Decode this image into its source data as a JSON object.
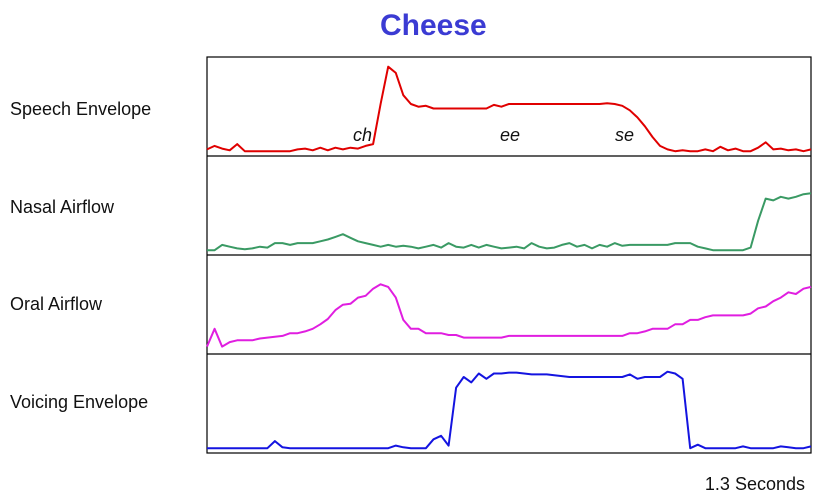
{
  "title": "Cheese",
  "footer": "1.3 Seconds",
  "chart_data": {
    "type": "line",
    "title": "Cheese",
    "xlabel": "1.3 Seconds",
    "ylabel": "",
    "legend": "none",
    "grid": false,
    "series": [
      {
        "name": "Speech Envelope",
        "color": "#e00000",
        "x": [
          0,
          1,
          2,
          3,
          4,
          5,
          6,
          7,
          8,
          9,
          10,
          11,
          12,
          13,
          14,
          15,
          16,
          17,
          18,
          19,
          20,
          21,
          22,
          23,
          24,
          25,
          26,
          27,
          28,
          29,
          30,
          31,
          32,
          33,
          34,
          35,
          36,
          37,
          38,
          39,
          40,
          41,
          42,
          43,
          44,
          45,
          46,
          47,
          48,
          49,
          50,
          51,
          52,
          53,
          54,
          55,
          56,
          57,
          58,
          59,
          60,
          61,
          62,
          63,
          64,
          65,
          66,
          67,
          68,
          69,
          70,
          71,
          72,
          73,
          74,
          75,
          76,
          77,
          78,
          79,
          80
        ],
        "values": [
          0.04,
          0.08,
          0.05,
          0.03,
          0.1,
          0.02,
          0.02,
          0.02,
          0.02,
          0.02,
          0.02,
          0.02,
          0.04,
          0.05,
          0.03,
          0.06,
          0.03,
          0.06,
          0.04,
          0.06,
          0.05,
          0.08,
          0.1,
          0.55,
          0.97,
          0.9,
          0.65,
          0.55,
          0.52,
          0.53,
          0.5,
          0.5,
          0.5,
          0.5,
          0.5,
          0.5,
          0.5,
          0.5,
          0.54,
          0.52,
          0.55,
          0.55,
          0.55,
          0.55,
          0.55,
          0.55,
          0.55,
          0.55,
          0.55,
          0.55,
          0.55,
          0.55,
          0.55,
          0.56,
          0.55,
          0.53,
          0.48,
          0.4,
          0.3,
          0.18,
          0.08,
          0.04,
          0.02,
          0.03,
          0.02,
          0.02,
          0.04,
          0.02,
          0.07,
          0.03,
          0.05,
          0.02,
          0.02,
          0.06,
          0.12,
          0.04,
          0.05,
          0.03,
          0.04,
          0.02,
          0.04
        ],
        "annotations": [
          "ch",
          "ee",
          "se"
        ]
      },
      {
        "name": "Nasal Airflow",
        "color": "#3a9a64",
        "x": [
          0,
          1,
          2,
          3,
          4,
          5,
          6,
          7,
          8,
          9,
          10,
          11,
          12,
          13,
          14,
          15,
          16,
          17,
          18,
          19,
          20,
          21,
          22,
          23,
          24,
          25,
          26,
          27,
          28,
          29,
          30,
          31,
          32,
          33,
          34,
          35,
          36,
          37,
          38,
          39,
          40,
          41,
          42,
          43,
          44,
          45,
          46,
          47,
          48,
          49,
          50,
          51,
          52,
          53,
          54,
          55,
          56,
          57,
          58,
          59,
          60,
          61,
          62,
          63,
          64,
          65,
          66,
          67,
          68,
          69,
          70,
          71,
          72,
          73,
          74,
          75,
          76,
          77,
          78,
          79,
          80
        ],
        "values": [
          0.02,
          0.02,
          0.08,
          0.06,
          0.04,
          0.03,
          0.04,
          0.06,
          0.05,
          0.1,
          0.1,
          0.08,
          0.1,
          0.1,
          0.1,
          0.12,
          0.14,
          0.17,
          0.2,
          0.16,
          0.12,
          0.1,
          0.08,
          0.06,
          0.08,
          0.06,
          0.07,
          0.06,
          0.04,
          0.06,
          0.08,
          0.05,
          0.1,
          0.06,
          0.05,
          0.08,
          0.05,
          0.08,
          0.06,
          0.04,
          0.05,
          0.06,
          0.04,
          0.1,
          0.06,
          0.04,
          0.05,
          0.08,
          0.1,
          0.06,
          0.08,
          0.04,
          0.08,
          0.06,
          0.1,
          0.07,
          0.08,
          0.08,
          0.08,
          0.08,
          0.08,
          0.08,
          0.1,
          0.1,
          0.1,
          0.06,
          0.04,
          0.02,
          0.02,
          0.02,
          0.02,
          0.02,
          0.05,
          0.35,
          0.6,
          0.58,
          0.62,
          0.6,
          0.62,
          0.65,
          0.66
        ]
      },
      {
        "name": "Oral Airflow",
        "color": "#e01ee0",
        "x": [
          0,
          1,
          2,
          3,
          4,
          5,
          6,
          7,
          8,
          9,
          10,
          11,
          12,
          13,
          14,
          15,
          16,
          17,
          18,
          19,
          20,
          21,
          22,
          23,
          24,
          25,
          26,
          27,
          28,
          29,
          30,
          31,
          32,
          33,
          34,
          35,
          36,
          37,
          38,
          39,
          40,
          41,
          42,
          43,
          44,
          45,
          46,
          47,
          48,
          49,
          50,
          51,
          52,
          53,
          54,
          55,
          56,
          57,
          58,
          59,
          60,
          61,
          62,
          63,
          64,
          65,
          66,
          67,
          68,
          69,
          70,
          71,
          72,
          73,
          74,
          75,
          76,
          77,
          78,
          79,
          80
        ],
        "values": [
          0.05,
          0.25,
          0.05,
          0.1,
          0.12,
          0.12,
          0.12,
          0.14,
          0.15,
          0.16,
          0.17,
          0.2,
          0.2,
          0.22,
          0.25,
          0.3,
          0.36,
          0.46,
          0.52,
          0.53,
          0.6,
          0.62,
          0.7,
          0.75,
          0.72,
          0.6,
          0.35,
          0.25,
          0.25,
          0.2,
          0.2,
          0.2,
          0.18,
          0.18,
          0.15,
          0.15,
          0.15,
          0.15,
          0.15,
          0.15,
          0.17,
          0.17,
          0.17,
          0.17,
          0.17,
          0.17,
          0.17,
          0.17,
          0.17,
          0.17,
          0.17,
          0.17,
          0.17,
          0.17,
          0.17,
          0.17,
          0.2,
          0.2,
          0.22,
          0.25,
          0.25,
          0.25,
          0.3,
          0.3,
          0.35,
          0.35,
          0.38,
          0.4,
          0.4,
          0.4,
          0.4,
          0.4,
          0.42,
          0.48,
          0.5,
          0.56,
          0.6,
          0.66,
          0.64,
          0.7,
          0.72
        ]
      },
      {
        "name": "Voicing Envelope",
        "color": "#1414e0",
        "x": [
          0,
          1,
          2,
          3,
          4,
          5,
          6,
          7,
          8,
          9,
          10,
          11,
          12,
          13,
          14,
          15,
          16,
          17,
          18,
          19,
          20,
          21,
          22,
          23,
          24,
          25,
          26,
          27,
          28,
          29,
          30,
          31,
          32,
          33,
          34,
          35,
          36,
          37,
          38,
          39,
          40,
          41,
          42,
          43,
          44,
          45,
          46,
          47,
          48,
          49,
          50,
          51,
          52,
          53,
          54,
          55,
          56,
          57,
          58,
          59,
          60,
          61,
          62,
          63,
          64,
          65,
          66,
          67,
          68,
          69,
          70,
          71,
          72,
          73,
          74,
          75,
          76,
          77,
          78,
          79,
          80
        ],
        "values": [
          0.02,
          0.02,
          0.02,
          0.02,
          0.02,
          0.02,
          0.02,
          0.02,
          0.02,
          0.1,
          0.03,
          0.02,
          0.02,
          0.02,
          0.02,
          0.02,
          0.02,
          0.02,
          0.02,
          0.02,
          0.02,
          0.02,
          0.02,
          0.02,
          0.02,
          0.05,
          0.03,
          0.02,
          0.02,
          0.02,
          0.12,
          0.16,
          0.05,
          0.7,
          0.82,
          0.76,
          0.86,
          0.8,
          0.86,
          0.86,
          0.87,
          0.87,
          0.86,
          0.85,
          0.85,
          0.85,
          0.84,
          0.83,
          0.82,
          0.82,
          0.82,
          0.82,
          0.82,
          0.82,
          0.82,
          0.82,
          0.85,
          0.8,
          0.82,
          0.82,
          0.82,
          0.88,
          0.86,
          0.8,
          0.02,
          0.06,
          0.02,
          0.02,
          0.02,
          0.02,
          0.02,
          0.04,
          0.02,
          0.02,
          0.02,
          0.02,
          0.04,
          0.03,
          0.02,
          0.02,
          0.04
        ]
      }
    ]
  }
}
